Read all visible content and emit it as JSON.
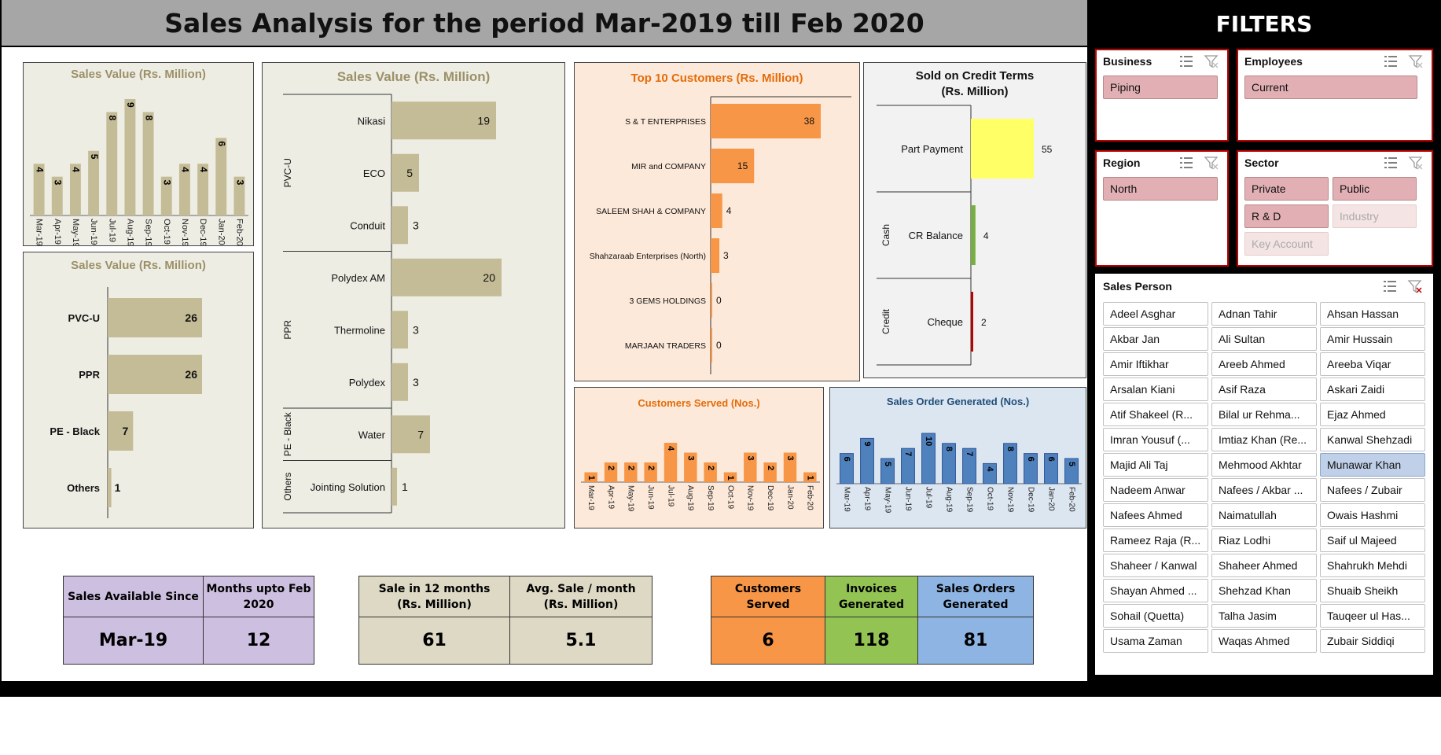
{
  "title": "Sales Analysis for the period Mar-2019 till Feb 2020",
  "colors": {
    "khaki": "#c4bc96",
    "orange": "#f79646",
    "blue": "#4f81bd",
    "yellow": "#ffff66",
    "green": "#77b041",
    "red": "#c00000",
    "panel_khaki": "#eeede4",
    "panel_orange": "#fde9d9",
    "panel_blue": "#dce6f1"
  },
  "charts": {
    "monthly_sales": {
      "title": "Sales Value (Rs. Million)"
    },
    "category_sales": {
      "title": "Sales Value (Rs. Million)"
    },
    "product_sales": {
      "title": "Sales Value (Rs. Million)"
    },
    "top_customers": {
      "title": "Top 10 Customers (Rs. Million)"
    },
    "credit_terms": {
      "title_line1": "Sold on Credit Terms",
      "title_line2": "(Rs. Million)"
    },
    "customers_served": {
      "title": "Customers Served  (Nos.)"
    },
    "sales_orders": {
      "title": "Sales Order Generated  (Nos.)"
    }
  },
  "chart_data": [
    {
      "id": "monthly_sales",
      "type": "bar",
      "title": "Sales Value (Rs. Million)",
      "categories": [
        "Mar-19",
        "Apr-19",
        "May-19",
        "Jun-19",
        "Jul-19",
        "Aug-19",
        "Sep-19",
        "Oct-19",
        "Nov-19",
        "Dec-19",
        "Jan-20",
        "Feb-20"
      ],
      "values": [
        4,
        3,
        4,
        5,
        8,
        9,
        8,
        3,
        4,
        4,
        6,
        3
      ],
      "ylim": [
        0,
        9
      ]
    },
    {
      "id": "category_sales",
      "type": "bar",
      "orientation": "horizontal",
      "title": "Sales Value (Rs. Million)",
      "categories": [
        "PVC-U",
        "PPR",
        "PE - Black",
        "Others"
      ],
      "values": [
        26,
        26,
        7,
        1
      ]
    },
    {
      "id": "product_sales",
      "type": "bar",
      "orientation": "horizontal",
      "title": "Sales Value (Rs. Million)",
      "groups": [
        {
          "name": "PVC-U",
          "items": [
            {
              "label": "Nikasi",
              "value": 19
            },
            {
              "label": "ECO",
              "value": 5
            },
            {
              "label": "Conduit",
              "value": 3
            }
          ]
        },
        {
          "name": "PPR",
          "items": [
            {
              "label": "Polydex AM",
              "value": 20
            },
            {
              "label": "Thermoline",
              "value": 3
            },
            {
              "label": "Polydex",
              "value": 3
            }
          ]
        },
        {
          "name": "PE - Black",
          "items": [
            {
              "label": "Water",
              "value": 7
            }
          ]
        },
        {
          "name": "Others",
          "items": [
            {
              "label": "Jointing Solution",
              "value": 1
            }
          ]
        }
      ]
    },
    {
      "id": "top_customers",
      "type": "bar",
      "orientation": "horizontal",
      "title": "Top 10 Customers (Rs. Million)",
      "categories": [
        "S & T ENTERPRISES",
        "MIR and COMPANY",
        "SALEEM SHAH & COMPANY",
        "Shahzaraab Enterprises (North)",
        "3 GEMS HOLDINGS",
        "MARJAAN TRADERS"
      ],
      "values": [
        38,
        15,
        4,
        3,
        0,
        0
      ]
    },
    {
      "id": "credit_terms",
      "type": "bar",
      "orientation": "horizontal",
      "title": "Sold on Credit Terms (Rs. Million)",
      "groups": [
        {
          "name": "",
          "items": [
            {
              "label": "Part Payment",
              "value": 55
            }
          ]
        },
        {
          "name": "Cash",
          "items": [
            {
              "label": "CR Balance",
              "value": 4
            }
          ]
        },
        {
          "name": "Credit",
          "items": [
            {
              "label": "Cheque",
              "value": 2
            }
          ]
        }
      ]
    },
    {
      "id": "customers_served",
      "type": "bar",
      "title": "Customers Served  (Nos.)",
      "categories": [
        "Mar-19",
        "Apr-19",
        "May-19",
        "Jun-19",
        "Jul-19",
        "Aug-19",
        "Sep-19",
        "Oct-19",
        "Nov-19",
        "Dec-19",
        "Jan-20",
        "Feb-20"
      ],
      "values": [
        1,
        2,
        2,
        2,
        4,
        3,
        2,
        1,
        3,
        2,
        3,
        1
      ]
    },
    {
      "id": "sales_orders",
      "type": "bar",
      "title": "Sales Order Generated  (Nos.)",
      "categories": [
        "Mar-19",
        "Apr-19",
        "May-19",
        "Jun-19",
        "Jul-19",
        "Aug-19",
        "Sep-19",
        "Oct-19",
        "Nov-19",
        "Dec-19",
        "Jan-20",
        "Feb-20"
      ],
      "values": [
        6,
        9,
        5,
        7,
        10,
        8,
        7,
        4,
        8,
        6,
        6,
        5
      ]
    }
  ],
  "kpi": {
    "group1": {
      "h1": "Sales Available Since",
      "h2_line1": "Months upto Feb",
      "h2_line2": "2020",
      "v1": "Mar-19",
      "v2": "12"
    },
    "group2": {
      "h1_line1": "Sale in 12 months",
      "h1_line2": "(Rs. Million)",
      "h2_line1": "Avg. Sale / month",
      "h2_line2": "(Rs. Million)",
      "v1": "61",
      "v2": "5.1"
    },
    "group3": {
      "h1": "Customers Served",
      "h2_line1": "Invoices",
      "h2_line2": "Generated",
      "h3_line1": "Sales Orders",
      "h3_line2": "Generated",
      "v1": "6",
      "v2": "118",
      "v3": "81"
    }
  },
  "filters": {
    "title": "FILTERS",
    "business": {
      "header": "Business",
      "items": [
        {
          "label": "Piping",
          "state": "sel"
        }
      ]
    },
    "employees": {
      "header": "Employees",
      "items": [
        {
          "label": "Current",
          "state": "sel"
        }
      ]
    },
    "region": {
      "header": "Region",
      "items": [
        {
          "label": "North",
          "state": "sel"
        }
      ]
    },
    "sector": {
      "header": "Sector",
      "items": [
        {
          "label": "Private",
          "state": "sel"
        },
        {
          "label": "Public",
          "state": "sel"
        },
        {
          "label": "R & D",
          "state": "sel"
        },
        {
          "label": "Industry",
          "state": "dim"
        },
        {
          "label": "Key Account",
          "state": "dim"
        }
      ]
    },
    "sales_person": {
      "header": "Sales Person",
      "items": [
        "Adeel Asghar",
        "Adnan Tahir",
        "Ahsan Hassan",
        "Akbar Jan",
        "Ali Sultan",
        "Amir Hussain",
        "Amir Iftikhar",
        "Areeb Ahmed",
        "Areeba Viqar",
        "Arsalan Kiani",
        "Asif Raza",
        "Askari Zaidi",
        "Atif Shakeel (R...",
        "Bilal ur Rehma...",
        "Ejaz Ahmed",
        "Imran Yousuf (...",
        "Imtiaz Khan (Re...",
        "Kanwal Shehzadi",
        "Majid Ali Taj",
        "Mehmood Akhtar",
        "Munawar Khan",
        "Nadeem Anwar",
        "Nafees / Akbar ...",
        "Nafees / Zubair",
        "Nafees Ahmed",
        "Naimatullah",
        "Owais Hashmi",
        "Rameez Raja (R...",
        "Riaz Lodhi",
        "Saif ul Majeed",
        "Shaheer / Kanwal",
        "Shaheer Ahmed",
        "Shahrukh Mehdi",
        "Shayan Ahmed ...",
        "Shehzad Khan",
        "Shuaib Sheikh",
        "Sohail (Quetta)",
        "Talha Jasim",
        "Tauqeer ul Has...",
        "Usama Zaman",
        "Waqas Ahmed",
        "Zubair Siddiqi"
      ],
      "selected": "Munawar Khan"
    }
  }
}
